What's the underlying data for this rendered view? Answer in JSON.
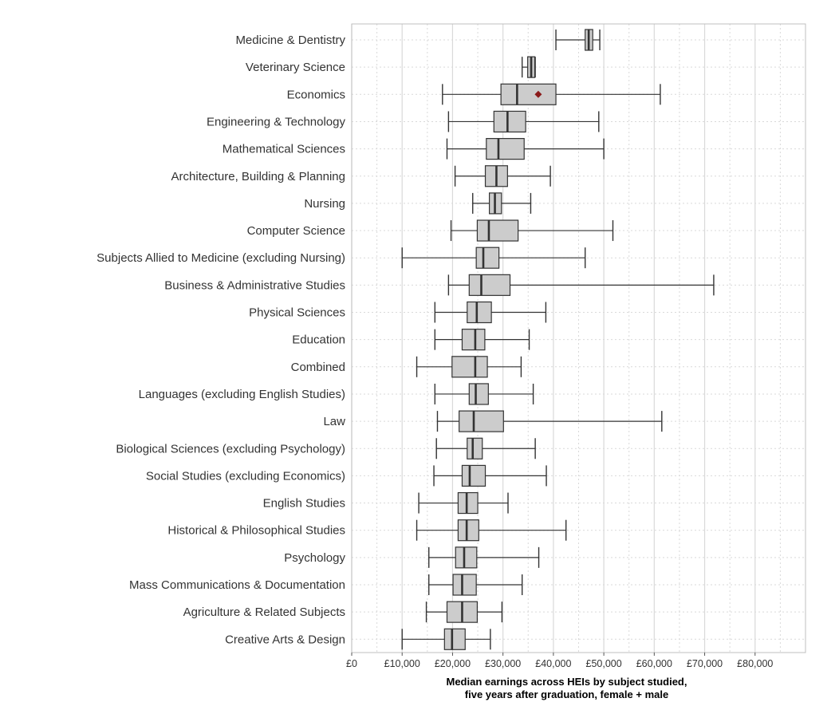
{
  "chart_data": {
    "type": "boxplot",
    "orientation": "horizontal",
    "xlabel": "Median earnings across HEIs by subject studied,",
    "xlabel_line2": "five years after graduation, female + male",
    "xlim": [
      0,
      90000
    ],
    "xticks": [
      {
        "value": 0,
        "label": "£0"
      },
      {
        "value": 10000,
        "label": "£10,000"
      },
      {
        "value": 20000,
        "label": "£20,000"
      },
      {
        "value": 30000,
        "label": "£30,000"
      },
      {
        "value": 40000,
        "label": "£40,000"
      },
      {
        "value": 50000,
        "label": "£50,000"
      },
      {
        "value": 60000,
        "label": "£60,000"
      },
      {
        "value": 70000,
        "label": "£70,000"
      },
      {
        "value": 80000,
        "label": "£80,000"
      }
    ],
    "grid": true,
    "colors": {
      "box_fill": "#cccccc",
      "box_stroke": "#333333",
      "outlier": "#8b1a1a",
      "grid": "#d9d9d9",
      "panel_border": "#bfbfbf"
    },
    "categories": [
      {
        "label": "Medicine & Dentistry",
        "min": 40500,
        "q1": 46300,
        "median": 47000,
        "q3": 47800,
        "max": 49200,
        "outliers": []
      },
      {
        "label": "Veterinary Science",
        "min": 33800,
        "q1": 34900,
        "median": 35600,
        "q3": 36300,
        "max": 36400,
        "outliers": []
      },
      {
        "label": "Economics",
        "min": 18000,
        "q1": 29600,
        "median": 32800,
        "q3": 40500,
        "max": 61200,
        "outliers": [
          37000
        ]
      },
      {
        "label": "Engineering & Technology",
        "min": 19200,
        "q1": 28200,
        "median": 30900,
        "q3": 34500,
        "max": 49000,
        "outliers": []
      },
      {
        "label": "Mathematical Sciences",
        "min": 18900,
        "q1": 26700,
        "median": 29100,
        "q3": 34200,
        "max": 50000,
        "outliers": []
      },
      {
        "label": "Architecture, Building & Planning",
        "min": 20500,
        "q1": 26500,
        "median": 28700,
        "q3": 30900,
        "max": 39400,
        "outliers": []
      },
      {
        "label": "Nursing",
        "min": 24000,
        "q1": 27300,
        "median": 28400,
        "q3": 29700,
        "max": 35500,
        "outliers": []
      },
      {
        "label": "Computer Science",
        "min": 19700,
        "q1": 24900,
        "median": 27200,
        "q3": 33000,
        "max": 51800,
        "outliers": []
      },
      {
        "label": "Subjects Allied to Medicine (excluding Nursing)",
        "min": 10000,
        "q1": 24700,
        "median": 26100,
        "q3": 29200,
        "max": 46300,
        "outliers": []
      },
      {
        "label": "Business & Administrative Studies",
        "min": 19200,
        "q1": 23300,
        "median": 25700,
        "q3": 31400,
        "max": 71800,
        "outliers": []
      },
      {
        "label": "Physical Sciences",
        "min": 16500,
        "q1": 22900,
        "median": 24800,
        "q3": 27700,
        "max": 38500,
        "outliers": []
      },
      {
        "label": "Education",
        "min": 16500,
        "q1": 21900,
        "median": 24500,
        "q3": 26400,
        "max": 35200,
        "outliers": []
      },
      {
        "label": "Combined",
        "min": 12900,
        "q1": 19900,
        "median": 24500,
        "q3": 26900,
        "max": 33600,
        "outliers": []
      },
      {
        "label": "Languages (excluding English Studies)",
        "min": 16500,
        "q1": 23300,
        "median": 24600,
        "q3": 27100,
        "max": 36000,
        "outliers": []
      },
      {
        "label": "Law",
        "min": 17000,
        "q1": 21300,
        "median": 24200,
        "q3": 30100,
        "max": 61500,
        "outliers": []
      },
      {
        "label": "Biological Sciences (excluding Psychology)",
        "min": 16800,
        "q1": 22900,
        "median": 24000,
        "q3": 25900,
        "max": 36400,
        "outliers": []
      },
      {
        "label": "Social Studies (excluding Economics)",
        "min": 16300,
        "q1": 21900,
        "median": 23400,
        "q3": 26500,
        "max": 38600,
        "outliers": []
      },
      {
        "label": "English Studies",
        "min": 13300,
        "q1": 21100,
        "median": 22800,
        "q3": 25000,
        "max": 31000,
        "outliers": []
      },
      {
        "label": "Historical & Philosophical Studies",
        "min": 12900,
        "q1": 21100,
        "median": 22800,
        "q3": 25200,
        "max": 42500,
        "outliers": []
      },
      {
        "label": "Psychology",
        "min": 15300,
        "q1": 20600,
        "median": 22300,
        "q3": 24800,
        "max": 37100,
        "outliers": []
      },
      {
        "label": "Mass Communications & Documentation",
        "min": 15300,
        "q1": 20100,
        "median": 21900,
        "q3": 24700,
        "max": 33800,
        "outliers": []
      },
      {
        "label": "Agriculture & Related Subjects",
        "min": 14800,
        "q1": 18900,
        "median": 21900,
        "q3": 24900,
        "max": 29800,
        "outliers": []
      },
      {
        "label": "Creative Arts & Design",
        "min": 10000,
        "q1": 18400,
        "median": 19900,
        "q3": 22500,
        "max": 27500,
        "outliers": []
      }
    ]
  }
}
